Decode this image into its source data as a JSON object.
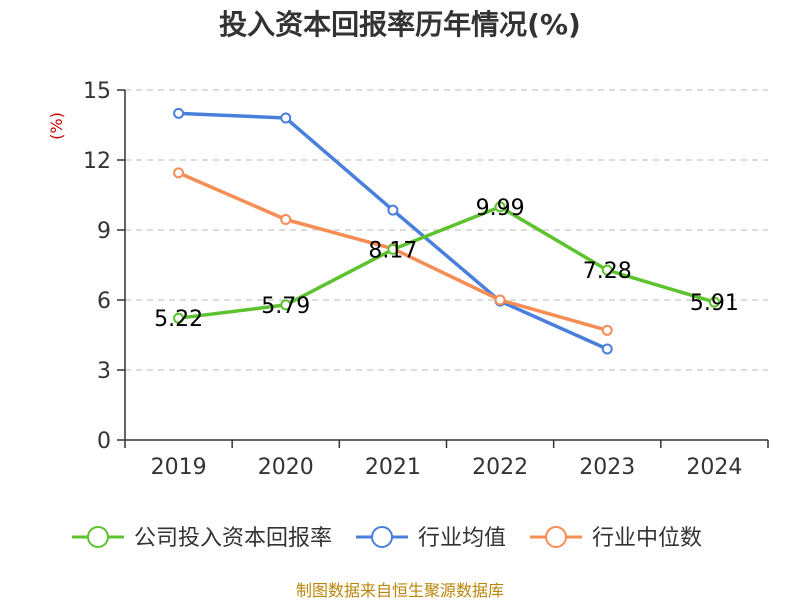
{
  "chart_data": {
    "type": "line",
    "title": "投入资本回报率历年情况(%)",
    "ylabel": "(%)",
    "categories": [
      "2019",
      "2020",
      "2021",
      "2022",
      "2023",
      "2024"
    ],
    "ylim": [
      0,
      15
    ],
    "yticks": [
      0,
      3,
      6,
      9,
      12,
      15
    ],
    "grid": true,
    "legend_position": "bottom",
    "series": [
      {
        "name": "公司投入资本回报率",
        "color": "#5cc22e",
        "values": [
          5.22,
          5.79,
          8.17,
          9.99,
          7.28,
          5.91
        ],
        "labels": [
          "5.22",
          "5.79",
          "8.17",
          "9.99",
          "7.28",
          "5.91"
        ]
      },
      {
        "name": "行业均值",
        "color": "#4a7fdc",
        "values": [
          14.0,
          13.8,
          9.85,
          5.95,
          3.9,
          null
        ]
      },
      {
        "name": "行业中位数",
        "color": "#f58d55",
        "values": [
          11.45,
          9.45,
          8.2,
          6.0,
          4.7,
          null
        ]
      }
    ]
  },
  "footer": {
    "source": "制图数据来自恒生聚源数据库"
  }
}
